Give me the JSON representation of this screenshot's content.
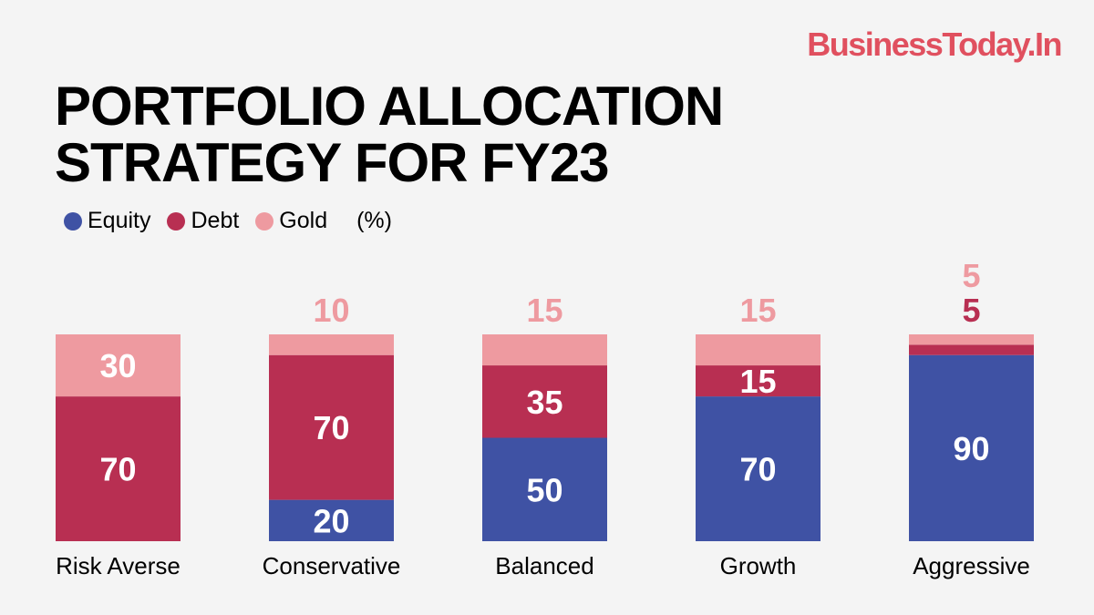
{
  "logo": "BusinessToday.In",
  "chart_data": {
    "type": "bar",
    "stacked": true,
    "title": "PORTFOLIO ALLOCATION STRATEGY FOR FY23",
    "unit": "(%)",
    "categories": [
      "Risk Averse",
      "Conservative",
      "Balanced",
      "Growth",
      "Aggressive"
    ],
    "series": [
      {
        "name": "Equity",
        "color": "#3f52a4",
        "values": [
          0,
          20,
          50,
          70,
          90
        ]
      },
      {
        "name": "Debt",
        "color": "#b82f52",
        "values": [
          70,
          70,
          35,
          15,
          5
        ]
      },
      {
        "name": "Gold",
        "color": "#ee9aa0",
        "values": [
          30,
          10,
          15,
          15,
          5
        ]
      }
    ],
    "ylim": [
      0,
      100
    ],
    "legend": "top-left",
    "grid": false
  }
}
